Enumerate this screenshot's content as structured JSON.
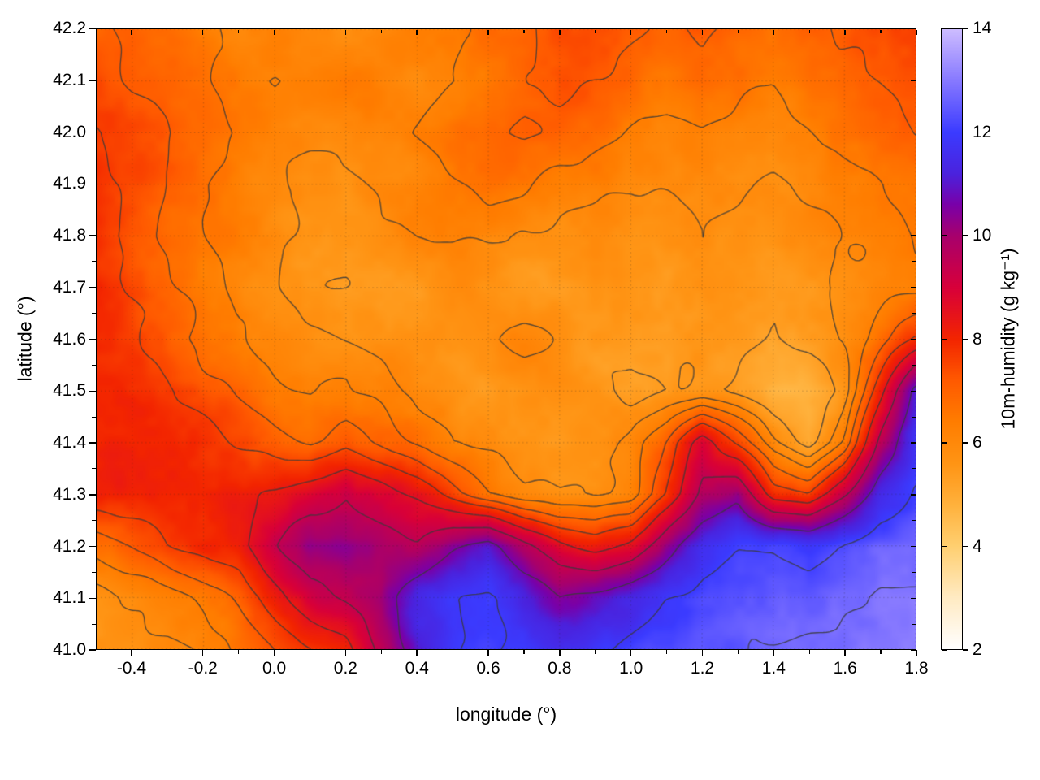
{
  "figure": {
    "background": "#ffffff"
  },
  "chart_data": {
    "type": "heatmap",
    "title": "",
    "xlabel": "longitude (°)",
    "ylabel": "latitude (°)",
    "colorbar_label": "10m-humidity (g kg⁻¹)",
    "x_range": [
      -0.5,
      1.8
    ],
    "y_range": [
      41.0,
      42.2
    ],
    "x_tick_values": [
      -0.4,
      -0.2,
      0.0,
      0.2,
      0.4,
      0.6,
      0.8,
      1.0,
      1.2,
      1.4,
      1.6,
      1.8
    ],
    "x_tick_labels": [
      "-0.4",
      "-0.2",
      "0.0",
      "0.2",
      "0.4",
      "0.6",
      "0.8",
      "1.0",
      "1.2",
      "1.4",
      "1.6",
      "1.8"
    ],
    "y_tick_values": [
      41.0,
      41.1,
      41.2,
      41.3,
      41.4,
      41.5,
      41.6,
      41.7,
      41.8,
      41.9,
      42.0,
      42.1,
      42.2
    ],
    "y_tick_labels": [
      "41.0",
      "41.1",
      "41.2",
      "41.3",
      "41.4",
      "41.5",
      "41.6",
      "41.7",
      "41.8",
      "41.9",
      "42.0",
      "42.1",
      "42.2"
    ],
    "grid_lines": true,
    "colorbar": {
      "range": [
        2,
        14
      ],
      "tick_values": [
        2,
        4,
        6,
        8,
        10,
        12,
        14
      ],
      "tick_labels": [
        "2",
        "4",
        "6",
        "8",
        "10",
        "12",
        "14"
      ]
    },
    "colormap_stops": [
      [
        2.0,
        "#ffffff"
      ],
      [
        3.0,
        "#ffeac2"
      ],
      [
        4.0,
        "#ffcf70"
      ],
      [
        4.8,
        "#ffb13c"
      ],
      [
        5.6,
        "#ff9414"
      ],
      [
        6.4,
        "#ff7d00"
      ],
      [
        7.2,
        "#ff5a00"
      ],
      [
        8.0,
        "#f32500"
      ],
      [
        9.0,
        "#d8003a"
      ],
      [
        10.0,
        "#a8006c"
      ],
      [
        10.6,
        "#7a00a8"
      ],
      [
        11.2,
        "#4b22dd"
      ],
      [
        12.0,
        "#3b3bff"
      ],
      [
        13.0,
        "#8678ff"
      ],
      [
        14.0,
        "#cdbcff"
      ]
    ],
    "contour_color": "#3a3a3a",
    "contour_levels": [
      4.9,
      5.4,
      5.9,
      6.4,
      7.0,
      7.6,
      8.4,
      9.4,
      10.6,
      12.0,
      12.8
    ],
    "field": {
      "lon": [
        -0.5,
        -0.4,
        -0.3,
        -0.2,
        -0.1,
        0.0,
        0.1,
        0.2,
        0.3,
        0.4,
        0.5,
        0.6,
        0.7,
        0.8,
        0.9,
        1.0,
        1.1,
        1.2,
        1.3,
        1.4,
        1.5,
        1.6,
        1.7,
        1.8
      ],
      "lat": [
        42.2,
        42.1,
        42.0,
        41.9,
        41.8,
        41.7,
        41.6,
        41.5,
        41.4,
        41.3,
        41.2,
        41.1,
        41.0
      ],
      "humidity_g_per_kg": [
        [
          7.2,
          7.0,
          6.8,
          6.6,
          6.3,
          6.4,
          6.2,
          6.0,
          6.2,
          6.5,
          6.4,
          6.6,
          6.9,
          7.4,
          7.6,
          7.2,
          6.9,
          7.1,
          6.8,
          6.6,
          6.8,
          7.0,
          7.3,
          7.4
        ],
        [
          7.4,
          7.1,
          6.9,
          6.6,
          6.2,
          6.0,
          6.1,
          6.3,
          6.2,
          6.0,
          6.2,
          6.6,
          7.0,
          7.4,
          7.1,
          6.9,
          6.7,
          6.9,
          6.7,
          6.4,
          6.7,
          6.9,
          7.1,
          7.4
        ],
        [
          7.7,
          7.4,
          7.1,
          6.7,
          6.4,
          6.1,
          6.0,
          6.0,
          6.1,
          6.4,
          6.7,
          6.9,
          7.1,
          6.9,
          6.7,
          6.4,
          6.2,
          6.4,
          6.2,
          6.1,
          6.4,
          6.7,
          6.9,
          7.1
        ],
        [
          7.8,
          7.4,
          7.0,
          6.5,
          6.2,
          6.0,
          5.8,
          5.8,
          6.0,
          6.1,
          6.4,
          6.7,
          6.4,
          6.2,
          6.1,
          6.0,
          6.0,
          6.1,
          6.0,
          5.8,
          6.0,
          6.2,
          6.4,
          6.7
        ],
        [
          7.8,
          7.3,
          6.8,
          6.5,
          6.2,
          6.0,
          5.8,
          5.5,
          5.8,
          6.0,
          6.1,
          6.0,
          5.8,
          5.6,
          5.8,
          5.6,
          5.8,
          6.0,
          5.8,
          5.6,
          5.8,
          6.0,
          6.2,
          6.4
        ],
        [
          8.0,
          7.5,
          7.0,
          6.6,
          6.2,
          5.9,
          5.6,
          5.5,
          5.5,
          5.6,
          5.8,
          5.6,
          5.5,
          5.5,
          5.6,
          5.5,
          5.6,
          5.8,
          5.6,
          5.5,
          5.6,
          5.8,
          6.0,
          6.2
        ],
        [
          8.0,
          7.8,
          7.3,
          6.8,
          6.5,
          6.2,
          6.0,
          5.8,
          5.6,
          5.5,
          5.6,
          6.0,
          6.2,
          5.8,
          5.6,
          5.5,
          5.5,
          5.6,
          5.5,
          5.3,
          5.5,
          5.8,
          6.6,
          7.6
        ],
        [
          8.2,
          8.0,
          7.8,
          7.4,
          7.0,
          6.6,
          6.3,
          6.4,
          6.2,
          5.8,
          5.6,
          5.5,
          5.6,
          5.8,
          5.5,
          5.3,
          5.5,
          5.6,
          5.3,
          4.9,
          4.9,
          5.6,
          8.0,
          10.8
        ],
        [
          8.2,
          8.1,
          8.0,
          7.8,
          7.5,
          7.2,
          7.0,
          7.4,
          7.0,
          6.5,
          6.0,
          5.8,
          5.6,
          5.5,
          5.6,
          6.0,
          7.0,
          8.8,
          7.4,
          6.0,
          5.2,
          6.6,
          9.6,
          11.6
        ],
        [
          8.0,
          8.0,
          8.0,
          8.0,
          8.2,
          8.5,
          9.0,
          9.4,
          8.9,
          8.4,
          7.4,
          6.5,
          6.0,
          5.8,
          5.8,
          6.1,
          7.6,
          9.6,
          10.4,
          8.0,
          7.6,
          9.2,
          11.2,
          12.0
        ],
        [
          6.6,
          7.0,
          7.5,
          7.8,
          8.1,
          9.4,
          10.4,
          10.4,
          10.0,
          9.6,
          10.5,
          11.0,
          9.5,
          8.5,
          8.1,
          8.6,
          10.2,
          11.6,
          12.0,
          12.0,
          11.6,
          12.0,
          12.4,
          12.5
        ],
        [
          5.6,
          5.9,
          6.1,
          6.6,
          7.1,
          8.1,
          9.1,
          9.6,
          10.1,
          11.4,
          12.0,
          12.2,
          11.5,
          10.6,
          11.0,
          11.5,
          12.0,
          12.3,
          12.5,
          12.5,
          12.5,
          12.8,
          13.0,
          13.0
        ],
        [
          5.5,
          5.7,
          5.9,
          6.1,
          6.6,
          7.1,
          7.6,
          8.1,
          9.6,
          11.1,
          12.0,
          12.2,
          12.0,
          11.6,
          11.8,
          12.0,
          12.3,
          12.5,
          12.6,
          12.8,
          13.0,
          13.0,
          13.2,
          13.2
        ]
      ]
    }
  }
}
